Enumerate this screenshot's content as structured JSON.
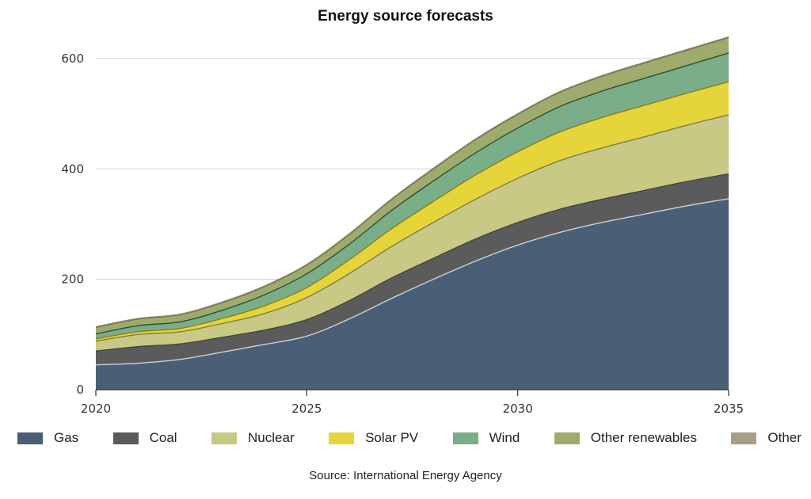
{
  "chart_data": {
    "type": "area",
    "stacked": true,
    "title": "Energy source forecasts",
    "xlabel": "",
    "ylabel": "",
    "x": [
      2020,
      2021,
      2022,
      2023,
      2024,
      2025,
      2026,
      2027,
      2028,
      2029,
      2030,
      2031,
      2032,
      2033,
      2034,
      2035
    ],
    "xlim": [
      2020,
      2035
    ],
    "ylim": [
      0,
      640
    ],
    "x_ticks": [
      2020,
      2025,
      2030,
      2035
    ],
    "y_ticks": [
      0,
      200,
      400,
      600
    ],
    "x_tick_labels": [
      "2020",
      "2025",
      "2030",
      "2035"
    ],
    "y_tick_labels": [
      "0",
      "200",
      "400",
      "600"
    ],
    "grid": "horizontal",
    "legend_position": "bottom",
    "series": [
      {
        "name": "Gas",
        "color": "#4a5e75",
        "line_color": "#c9d3dc",
        "values": [
          45,
          48,
          55,
          68,
          82,
          97,
          128,
          165,
          200,
          233,
          262,
          285,
          303,
          318,
          333,
          346
        ]
      },
      {
        "name": "Coal",
        "color": "#5b5b5b",
        "line_color": "#444444",
        "values": [
          25,
          30,
          28,
          27,
          26,
          30,
          33,
          37,
          38,
          40,
          41,
          42,
          42,
          43,
          44,
          45
        ]
      },
      {
        "name": "Nuclear",
        "color": "#c8c984",
        "line_color": "#7d7d4f",
        "values": [
          18,
          22,
          22,
          25,
          30,
          40,
          49,
          57,
          65,
          72,
          80,
          88,
          93,
          97,
          102,
          107
        ]
      },
      {
        "name": "Solar PV",
        "color": "#e6d53a",
        "line_color": "#8a7e1f",
        "values": [
          4,
          5,
          6,
          9,
          14,
          18,
          25,
          32,
          38,
          44,
          48,
          52,
          55,
          57,
          58,
          60
        ]
      },
      {
        "name": "Wind",
        "color": "#7aae88",
        "line_color": "#2e4f3a",
        "values": [
          9,
          11,
          12,
          15,
          20,
          25,
          28,
          33,
          37,
          40,
          43,
          46,
          48,
          49,
          50,
          52
        ]
      },
      {
        "name": "Other renewables",
        "color": "#9eab6c",
        "line_color": "#5e6a3a",
        "values": [
          12,
          12,
          13,
          14,
          15,
          16,
          18,
          20,
          22,
          24,
          25,
          26,
          27,
          28,
          28,
          28
        ]
      },
      {
        "name": "Other",
        "color": "#a79e88",
        "line_color": "#8e8672",
        "values": [
          1,
          1,
          1,
          1,
          1,
          1,
          1,
          1,
          1,
          1,
          1,
          1,
          1,
          1,
          1,
          1
        ]
      }
    ]
  },
  "legend_labels": [
    "Gas",
    "Coal",
    "Nuclear",
    "Solar PV",
    "Wind",
    "Other renewables",
    "Other"
  ],
  "source_note": "Source: International Energy Agency"
}
